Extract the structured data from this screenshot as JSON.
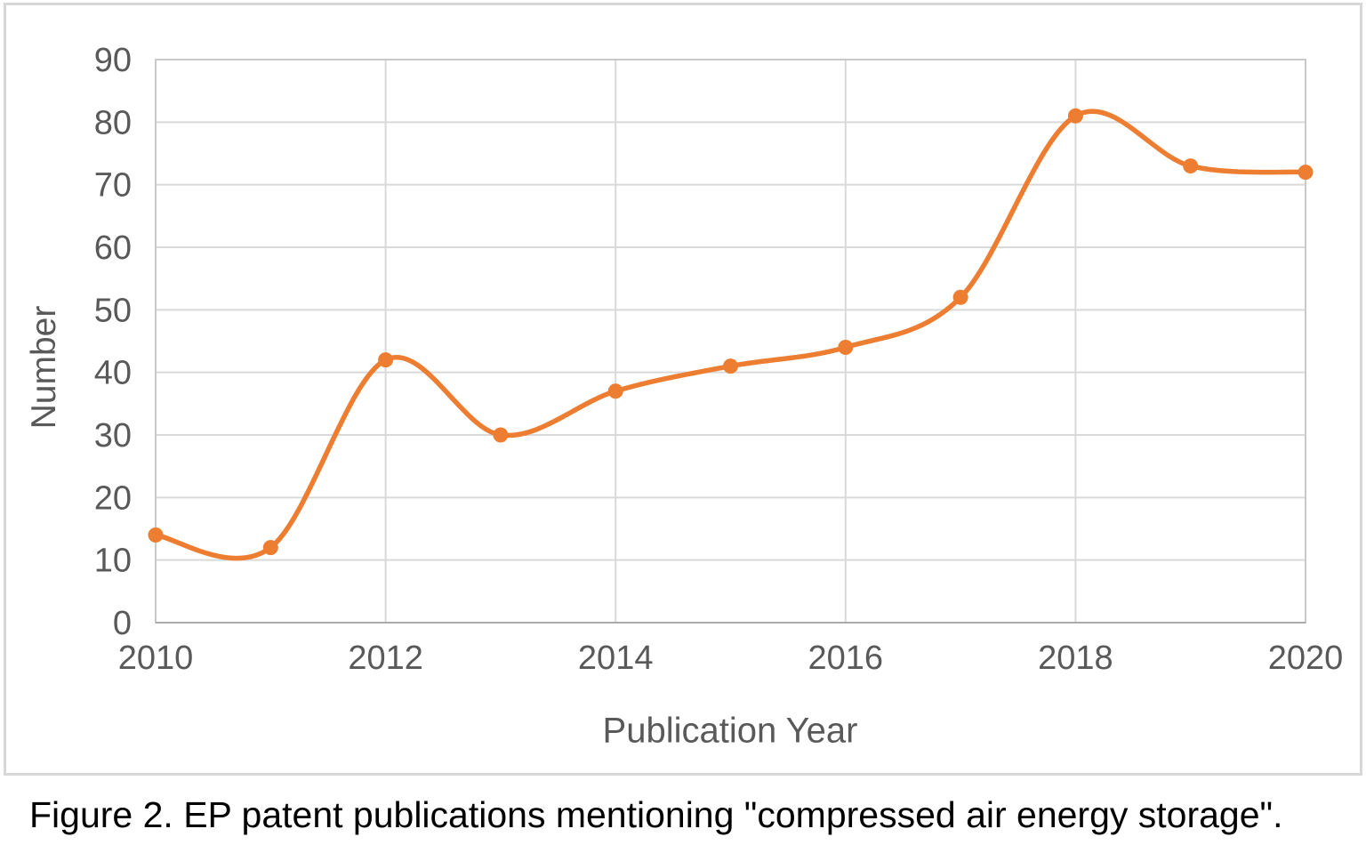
{
  "caption": "Figure 2. EP patent publications mentioning \"compressed air energy storage\".",
  "chart_data": {
    "type": "line",
    "title": "",
    "xlabel": "Publication Year",
    "ylabel": "Number",
    "series": [
      {
        "name": "EP patent publications",
        "x": [
          2010,
          2011,
          2012,
          2013,
          2014,
          2015,
          2016,
          2017,
          2018,
          2019,
          2020
        ],
        "values": [
          14,
          12,
          42,
          30,
          37,
          41,
          44,
          52,
          81,
          73,
          72
        ]
      }
    ],
    "xlim": [
      2010,
      2020
    ],
    "ylim": [
      0,
      90
    ],
    "yticks": [
      0,
      10,
      20,
      30,
      40,
      50,
      60,
      70,
      80,
      90
    ],
    "xticks": [
      2010,
      2012,
      2014,
      2016,
      2018,
      2020
    ],
    "grid": true,
    "legend": "none",
    "smooth_line": true,
    "colors": {
      "line": "#ED7D31",
      "marker": "#ED7D31",
      "gridline": "#D9D9D9",
      "plot_border": "#C9C9C9",
      "axis_line": "#ABABAB",
      "tick_text": "#595959",
      "caption_text": "#000000"
    }
  }
}
